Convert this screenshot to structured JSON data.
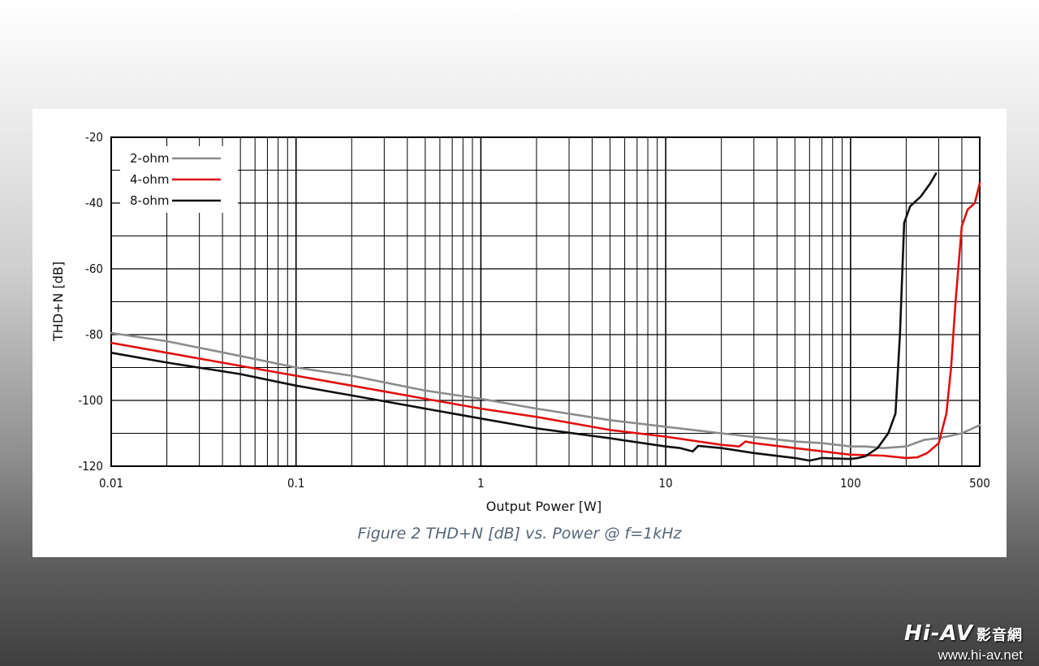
{
  "chart_data": {
    "type": "line",
    "xscale": "log",
    "xlabel": "Output Power [W]",
    "ylabel": "THD+N [dB]",
    "caption": "Figure 2 THD+N [dB] vs. Power @ f=1kHz",
    "xlim": [
      0.01,
      500
    ],
    "ylim": [
      -120,
      -20
    ],
    "x_ticks": [
      {
        "value": 0.01,
        "label": "0.01"
      },
      {
        "value": 0.1,
        "label": "0.1"
      },
      {
        "value": 1,
        "label": "1"
      },
      {
        "value": 10,
        "label": "10"
      },
      {
        "value": 100,
        "label": "100"
      },
      {
        "value": 500,
        "label": "500"
      }
    ],
    "y_ticks": [
      {
        "value": -20,
        "label": "-20"
      },
      {
        "value": -40,
        "label": "-40"
      },
      {
        "value": -60,
        "label": "-60"
      },
      {
        "value": -80,
        "label": "-80"
      },
      {
        "value": -100,
        "label": "-100"
      },
      {
        "value": -120,
        "label": "-120"
      }
    ],
    "grid": true,
    "legend_position": "top-left",
    "series": [
      {
        "name": "2-ohm",
        "color": "#8c8c8c",
        "points": [
          [
            0.01,
            -79.5
          ],
          [
            0.02,
            -82
          ],
          [
            0.05,
            -86.5
          ],
          [
            0.1,
            -90
          ],
          [
            0.2,
            -92.5
          ],
          [
            0.5,
            -97
          ],
          [
            1,
            -99.5
          ],
          [
            2,
            -102.5
          ],
          [
            5,
            -106
          ],
          [
            10,
            -108
          ],
          [
            20,
            -110
          ],
          [
            50,
            -112.5
          ],
          [
            70,
            -113
          ],
          [
            100,
            -114
          ],
          [
            120,
            -114
          ],
          [
            150,
            -114.5
          ],
          [
            200,
            -114
          ],
          [
            250,
            -112
          ],
          [
            300,
            -111.5
          ],
          [
            400,
            -110
          ],
          [
            500,
            -107.5
          ]
        ]
      },
      {
        "name": "4-ohm",
        "color": "#e01010",
        "points": [
          [
            0.01,
            -82.5
          ],
          [
            0.02,
            -85.5
          ],
          [
            0.05,
            -89.5
          ],
          [
            0.1,
            -92.5
          ],
          [
            0.2,
            -95.5
          ],
          [
            0.5,
            -99.5
          ],
          [
            1,
            -102.5
          ],
          [
            2,
            -105
          ],
          [
            5,
            -109
          ],
          [
            10,
            -111
          ],
          [
            20,
            -113.5
          ],
          [
            25,
            -114
          ],
          [
            27,
            -112.5
          ],
          [
            30,
            -113
          ],
          [
            50,
            -114.5
          ],
          [
            100,
            -116.5
          ],
          [
            150,
            -116.8
          ],
          [
            200,
            -117.5
          ],
          [
            230,
            -117.3
          ],
          [
            260,
            -116
          ],
          [
            300,
            -113
          ],
          [
            330,
            -104
          ],
          [
            350,
            -90
          ],
          [
            370,
            -70
          ],
          [
            400,
            -47
          ],
          [
            430,
            -42
          ],
          [
            470,
            -40
          ],
          [
            500,
            -34
          ]
        ]
      },
      {
        "name": "8-ohm",
        "color": "#101010",
        "points": [
          [
            0.01,
            -85.5
          ],
          [
            0.02,
            -88.5
          ],
          [
            0.05,
            -92
          ],
          [
            0.1,
            -95.5
          ],
          [
            0.2,
            -98.5
          ],
          [
            0.5,
            -102.5
          ],
          [
            1,
            -105.5
          ],
          [
            2,
            -108.5
          ],
          [
            5,
            -111.5
          ],
          [
            10,
            -114
          ],
          [
            12,
            -114.5
          ],
          [
            14,
            -115.5
          ],
          [
            15,
            -113.8
          ],
          [
            20,
            -114.5
          ],
          [
            30,
            -116
          ],
          [
            50,
            -117.5
          ],
          [
            60,
            -118.3
          ],
          [
            70,
            -117.5
          ],
          [
            100,
            -117.8
          ],
          [
            110,
            -117.5
          ],
          [
            120,
            -117
          ],
          [
            140,
            -114.5
          ],
          [
            160,
            -110
          ],
          [
            175,
            -104
          ],
          [
            185,
            -80
          ],
          [
            195,
            -46
          ],
          [
            210,
            -41
          ],
          [
            240,
            -38
          ],
          [
            270,
            -34
          ],
          [
            290,
            -31
          ]
        ]
      }
    ]
  },
  "watermark": {
    "brand": "Hi-AV",
    "brand_cjk": "影音網",
    "url": "www.hi-av.net"
  }
}
